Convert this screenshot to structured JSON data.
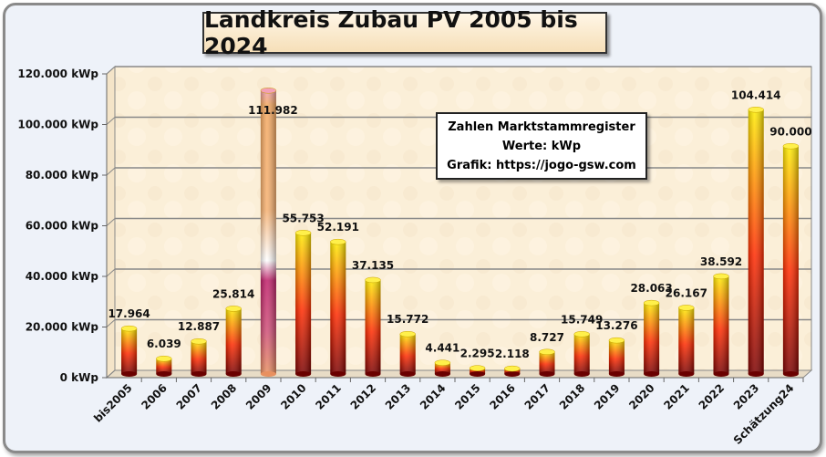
{
  "chart_data": {
    "type": "bar",
    "title": "Landkreis Zubau PV 2005 bis 2024",
    "xlabel": "",
    "ylabel": "",
    "ylim": [
      0,
      120000
    ],
    "yticks": [
      0,
      20000,
      40000,
      60000,
      80000,
      100000,
      120000
    ],
    "ytick_labels": [
      "0 kWp",
      "20.000 kWp",
      "40.000 kWp",
      "60.000 kWp",
      "80.000 kWp",
      "100.000 kWp",
      "120.000 kWp"
    ],
    "grid": true,
    "categories": [
      "bis2005",
      "2006",
      "2007",
      "2008",
      "2009",
      "2010",
      "2011",
      "2012",
      "2013",
      "2014",
      "2015",
      "2016",
      "2017",
      "2018",
      "2019",
      "2020",
      "2021",
      "2022",
      "2023",
      "Schätzung24"
    ],
    "values": [
      17964,
      6039,
      12887,
      25814,
      111982,
      55753,
      52191,
      37135,
      15772,
      4441,
      2295,
      2118,
      8727,
      15749,
      13276,
      28063,
      26167,
      38592,
      104414,
      90000
    ],
    "data_labels": [
      "17.964",
      "6.039",
      "12.887",
      "25.814",
      "111.982",
      "55.753",
      "52.191",
      "37.135",
      "15.772",
      "4.441",
      "2.295",
      "2.118",
      "8.727",
      "15.749",
      "13.276",
      "28.063",
      "26.167",
      "38.592",
      "104.414",
      "90.000"
    ],
    "legend": {
      "placement": "top-right",
      "lines": [
        "Zahlen Marktstammregister",
        "Werte: kWp",
        "Grafik: https://jogo-gsw.com"
      ]
    }
  }
}
